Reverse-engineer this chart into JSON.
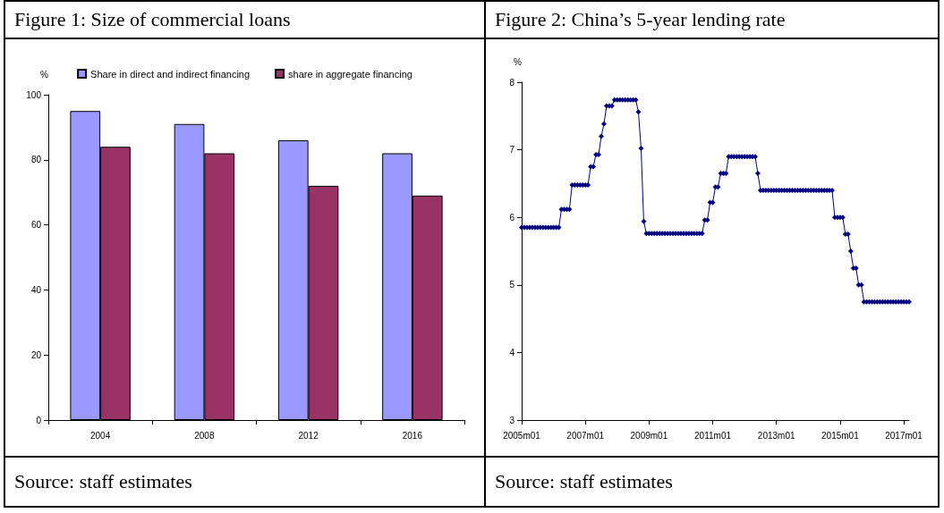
{
  "chart_data": [
    {
      "type": "bar",
      "title": "Figure 1: Size of commercial loans",
      "ylabel": "%",
      "categories": [
        "2004",
        "2008",
        "2012",
        "2016"
      ],
      "series": [
        {
          "name": "Share in direct and indirect financing",
          "color": "#9999ff",
          "values": [
            95,
            91,
            86,
            82
          ]
        },
        {
          "name": "share in aggregate financing",
          "color": "#993366",
          "values": [
            84,
            82,
            72,
            69
          ]
        }
      ],
      "ylim": [
        0,
        100
      ],
      "yticks": [
        0,
        20,
        40,
        60,
        80,
        100
      ],
      "grid": false,
      "legend": "top",
      "annotations": [
        "Source: staff estimates"
      ]
    },
    {
      "type": "line",
      "title": "Figure 2: China’s 5-year lending rate",
      "ylabel": "%",
      "categories": [
        "2005m01",
        null,
        null,
        null,
        null,
        null,
        null,
        null,
        null,
        null,
        null,
        null,
        null,
        null,
        null,
        null,
        null,
        null,
        null,
        null,
        null,
        null,
        null,
        null,
        "2007m01",
        null,
        null,
        null,
        null,
        null,
        null,
        null,
        null,
        null,
        null,
        null,
        null,
        null,
        null,
        null,
        null,
        null,
        null,
        null,
        null,
        null,
        null,
        null,
        "2009m01",
        null,
        null,
        null,
        null,
        null,
        null,
        null,
        null,
        null,
        null,
        null,
        null,
        null,
        null,
        null,
        null,
        null,
        null,
        null,
        null,
        null,
        null,
        null,
        "2011m01",
        null,
        null,
        null,
        null,
        null,
        null,
        null,
        null,
        null,
        null,
        null,
        null,
        null,
        null,
        null,
        null,
        null,
        null,
        null,
        null,
        null,
        null,
        null,
        "2013m01",
        null,
        null,
        null,
        null,
        null,
        null,
        null,
        null,
        null,
        null,
        null,
        null,
        null,
        null,
        null,
        null,
        null,
        null,
        null,
        null,
        null,
        null,
        null,
        "2015m01",
        null,
        null,
        null,
        null,
        null,
        null,
        null,
        null,
        null,
        null,
        null,
        null,
        null,
        null,
        null,
        null,
        null,
        null,
        null,
        null,
        null,
        null,
        null,
        "2017m01",
        null,
        null
      ],
      "series": [
        {
          "color": "#000080",
          "values": [
            5.85,
            5.85,
            5.85,
            5.85,
            5.85,
            5.85,
            5.85,
            5.85,
            5.85,
            5.85,
            5.85,
            5.85,
            5.85,
            5.85,
            5.85,
            6.12,
            6.12,
            6.12,
            6.12,
            6.48,
            6.48,
            6.48,
            6.48,
            6.48,
            6.48,
            6.48,
            6.75,
            6.75,
            6.93,
            6.93,
            7.2,
            7.38,
            7.65,
            7.65,
            7.65,
            7.74,
            7.74,
            7.74,
            7.74,
            7.74,
            7.74,
            7.74,
            7.74,
            7.74,
            7.56,
            7.02,
            5.94,
            5.76,
            5.76,
            5.76,
            5.76,
            5.76,
            5.76,
            5.76,
            5.76,
            5.76,
            5.76,
            5.76,
            5.76,
            5.76,
            5.76,
            5.76,
            5.76,
            5.76,
            5.76,
            5.76,
            5.76,
            5.76,
            5.76,
            5.96,
            5.96,
            6.22,
            6.22,
            6.45,
            6.45,
            6.65,
            6.65,
            6.65,
            6.9,
            6.9,
            6.9,
            6.9,
            6.9,
            6.9,
            6.9,
            6.9,
            6.9,
            6.9,
            6.9,
            6.65,
            6.4,
            6.4,
            6.4,
            6.4,
            6.4,
            6.4,
            6.4,
            6.4,
            6.4,
            6.4,
            6.4,
            6.4,
            6.4,
            6.4,
            6.4,
            6.4,
            6.4,
            6.4,
            6.4,
            6.4,
            6.4,
            6.4,
            6.4,
            6.4,
            6.4,
            6.4,
            6.4,
            6.4,
            6,
            6,
            6,
            6,
            5.75,
            5.75,
            5.5,
            5.25,
            5.25,
            5,
            5,
            4.75,
            4.75,
            4.75,
            4.75,
            4.75,
            4.75,
            4.75,
            4.75,
            4.75,
            4.75,
            4.75,
            4.75,
            4.75,
            4.75,
            4.75,
            4.75,
            4.75,
            4.75
          ]
        }
      ],
      "ylim": [
        3,
        8
      ],
      "yticks": [
        3,
        4,
        5,
        6,
        7,
        8
      ],
      "grid": false,
      "marker": "diamond",
      "line_style": "solid",
      "annotations": [
        "Source: staff estimates"
      ]
    }
  ]
}
